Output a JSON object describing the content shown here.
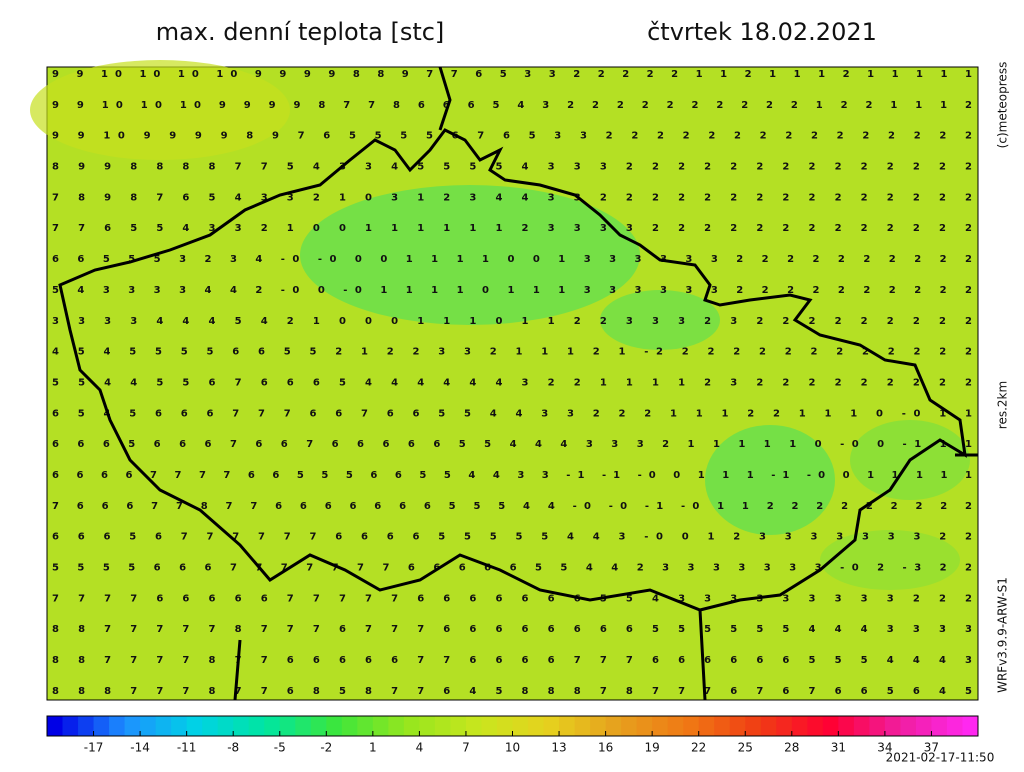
{
  "header": {
    "title": "max. denní teplota [stc]",
    "date": "čtvrtek 18.02.2021"
  },
  "side_labels": {
    "copyright": "(c)meteopress",
    "resolution": "res.2km",
    "model": "WRFv3.9.9-ARW-S1"
  },
  "timestamp": "2021-02-17-11:50",
  "colorbar": {
    "range": [
      -20,
      40
    ],
    "ticks": [
      -17,
      -14,
      -11,
      -8,
      -5,
      -2,
      1,
      4,
      7,
      10,
      13,
      16,
      19,
      22,
      25,
      28,
      31,
      34,
      37
    ],
    "colors": [
      "#0000e6",
      "#1e90ff",
      "#00d2e6",
      "#00e6a0",
      "#3ce63c",
      "#96e61e",
      "#c8e61e",
      "#e6d21e",
      "#e6a01e",
      "#f07814",
      "#f03c14",
      "#ff0032",
      "#f01ea0",
      "#ff28f0"
    ]
  },
  "map": {
    "rows": [
      "9 9 10 10 10 10 9 9 9 9 8 8 9 7 7 6 5 3 3 2 2 2 2 2 1 1 2 1 1 1 2 1 1 1 1 1",
      "9 9 10 10 10 9 9 9 9 8 7 7 8 6 6 6 5 4 3 2 2 2 2 2 2 2 2 2 2 1 2 2 1 1 1 2",
      "9 9 10 9 9 9 9 8 9 7 6 5 5 5 5 6 7 6 5 3 3 2 2 2 2 2 2 2 2 2 2 2 2 2 2 2",
      "8 9 9 8 8 8 8 7 7 5 4 3 3 4 5 5 5 5 4 3 3 3 2 2 2 2 2 2 2 2 2 2 2 2 2 2",
      "7 8 9 8 7 6 5 4 3 3 2 1 0 3 1 2 3 4 4 3 3 2 2 2 2 2 2 2 2 2 2 2 2 2 2 2",
      "7 7 6 5 5 4 3 3 2 1 0 0 1 1 1 1 1 1 2 3 3 3 3 2 2 2 2 2 2 2 2 2 2 2 2 2",
      "6 6 5 5 5 3 2 3 4 -0 -0 0 0 1 1 1 1 0 0 1 3 3 3 3 3 3 2 2 2 2 2 2 2 2 2 2",
      "5 4 3 3 3 3 4 4 2 -0 0 -0 1 1 1 1 0 1 1 1 3 3 3 3 3 3 2 2 2 2 2 2 2 2 2 2",
      "3 3 3 3 4 4 4 5 4 2 1 0 0 0 1 1 1 0 1 1 2 2 3 3 3 2 3 2 2 2 2 2 2 2 2 2",
      "4 5 4 5 5 5 5 6 6 5 5 2 1 2 2 3 3 2 1 1 1 2 1 -2 2 2 2 2 2 2 2 2 2 2 2 2",
      "5 5 4 4 5 5 6 7 6 6 6 5 4 4 4 4 4 4 3 2 2 1 1 1 1 2 3 2 2 2 2 2 2 2 2 2",
      "6 5 4 5 6 6 6 7 7 7 6 6 7 6 6 5 5 4 4 3 3 2 2 2 1 1 1 2 2 1 1 1 0 -0 1 1",
      "6 6 6 5 6 6 6 7 6 6 7 6 6 6 6 6 5 5 4 4 4 3 3 3 2 1 1 1 1 1 0 -0 0 -1 1 1",
      "6 6 6 6 7 7 7 7 6 6 5 5 5 6 6 5 5 4 4 3 3 -1 -1 -0 0 1 1 1 -1 -0 0 1 1 1 1 1",
      "7 6 6 6 7 7 8 7 7 6 6 6 6 6 6 6 5 5 5 4 4 -0 -0 -1 -0 1 1 2 2 2 2 2 2 2 2 2",
      "6 6 6 5 6 7 7 7 7 7 7 6 6 6 6 5 5 5 5 5 4 4 3 -0 0 1 2 3 3 3 3 3 3 3 2 2",
      "5 5 5 5 6 6 6 7 7 7 7 7 7 7 6 6 6 6 6 5 5 4 4 2 3 3 3 3 3 3 3 -0 2 -3 2 2",
      "7 7 7 7 6 6 6 6 6 7 7 7 7 7 6 6 6 6 6 6 6 5 5 4 3 3 3 3 3 3 3 3 3 2 2 2",
      "8 8 7 7 7 7 7 8 7 7 7 6 7 7 7 6 6 6 6 6 6 6 6 5 5 5 5 5 5 4 4 4 3 3 3 3",
      "8 8 7 7 7 7 8 7 7 6 6 6 6 6 7 7 6 6 6 6 7 7 7 6 6 6 6 6 6 5 5 5 4 4 4 3",
      "8 8 8 7 7 7 8 7 7 6 8 5 8 7 7 6 4 5 8 8 8 7 8 7 7 7 6 7 6 7 6 6 5 6 4 5"
    ]
  }
}
